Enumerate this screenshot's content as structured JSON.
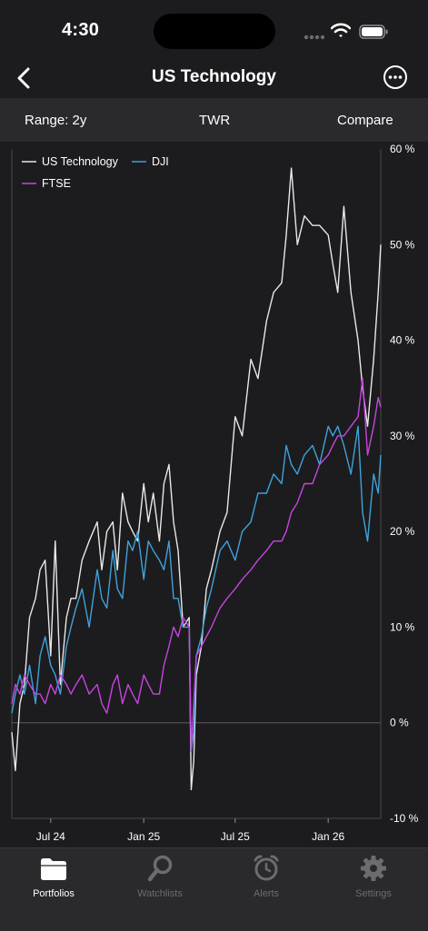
{
  "status": {
    "time": "4:30"
  },
  "nav": {
    "title": "US Technology",
    "back_icon": "chevron-left-icon",
    "more_icon": "ellipsis-circle-icon"
  },
  "controls": {
    "range": "Range: 2y",
    "metric": "TWR",
    "compare": "Compare"
  },
  "colors": {
    "us_technology": "#e8e8e8",
    "dji": "#3fa2dc",
    "ftse": "#c844e0",
    "background": "#1c1c1e",
    "panel": "#2a2a2d"
  },
  "chart_data": {
    "type": "line",
    "title": "",
    "xlabel": "",
    "ylabel": "",
    "legend_position": "top-left",
    "y_axis_position": "right",
    "ylim": [
      -10,
      60
    ],
    "y_ticks": [
      -10,
      0,
      10,
      20,
      30,
      40,
      50,
      60
    ],
    "y_tick_labels": [
      "-10 %",
      "0 %",
      "10 %",
      "20 %",
      "30 %",
      "40 %",
      "50 %",
      "60 %"
    ],
    "x_tick_labels": [
      "Jul 24",
      "Jan 25",
      "Jul 25",
      "Jan 26"
    ],
    "x_tick_dates": [
      "2024-07-01",
      "2025-01-01",
      "2025-07-01",
      "2026-01-01"
    ],
    "x_range": [
      "2024-04-15",
      "2026-04-15"
    ],
    "series": [
      {
        "name": "US Technology",
        "color": "#e8e8e8",
        "x": [
          "2024-04-15",
          "2024-04-22",
          "2024-05-01",
          "2024-05-10",
          "2024-05-20",
          "2024-06-01",
          "2024-06-10",
          "2024-06-20",
          "2024-07-01",
          "2024-07-10",
          "2024-07-20",
          "2024-08-01",
          "2024-08-10",
          "2024-08-20",
          "2024-09-01",
          "2024-09-15",
          "2024-10-01",
          "2024-10-10",
          "2024-10-20",
          "2024-11-01",
          "2024-11-10",
          "2024-11-20",
          "2024-12-01",
          "2024-12-10",
          "2024-12-20",
          "2025-01-01",
          "2025-01-10",
          "2025-01-20",
          "2025-02-01",
          "2025-02-10",
          "2025-02-20",
          "2025-03-01",
          "2025-03-10",
          "2025-03-20",
          "2025-04-01",
          "2025-04-05",
          "2025-04-10",
          "2025-04-15",
          "2025-04-25",
          "2025-05-05",
          "2025-05-15",
          "2025-06-01",
          "2025-06-15",
          "2025-07-01",
          "2025-07-15",
          "2025-08-01",
          "2025-08-15",
          "2025-09-01",
          "2025-09-15",
          "2025-10-01",
          "2025-10-10",
          "2025-10-20",
          "2025-11-01",
          "2025-11-15",
          "2025-12-01",
          "2025-12-15",
          "2026-01-01",
          "2026-01-10",
          "2026-01-20",
          "2026-02-01",
          "2026-02-15",
          "2026-03-01",
          "2026-03-10",
          "2026-03-20",
          "2026-04-01",
          "2026-04-10",
          "2026-04-15"
        ],
        "values": [
          -1,
          -5,
          2,
          4,
          11,
          13,
          16,
          17,
          7,
          19,
          4,
          11,
          13,
          13,
          17,
          19,
          21,
          16,
          20,
          21,
          16,
          24,
          21,
          20,
          19,
          25,
          21,
          24,
          19,
          25,
          27,
          21,
          18,
          10,
          11,
          -7,
          -4,
          5,
          8,
          14,
          16,
          20,
          22,
          32,
          30,
          38,
          36,
          42,
          45,
          46,
          51,
          58,
          50,
          53,
          52,
          52,
          51,
          48,
          45,
          54,
          45,
          40,
          35,
          31,
          38,
          45,
          50
        ]
      },
      {
        "name": "DJI",
        "color": "#3fa2dc",
        "x": [
          "2024-04-15",
          "2024-04-22",
          "2024-05-01",
          "2024-05-10",
          "2024-05-20",
          "2024-06-01",
          "2024-06-10",
          "2024-06-20",
          "2024-07-01",
          "2024-07-10",
          "2024-07-20",
          "2024-08-01",
          "2024-08-10",
          "2024-08-20",
          "2024-09-01",
          "2024-09-15",
          "2024-10-01",
          "2024-10-10",
          "2024-10-20",
          "2024-11-01",
          "2024-11-10",
          "2024-11-20",
          "2024-12-01",
          "2024-12-10",
          "2024-12-20",
          "2025-01-01",
          "2025-01-10",
          "2025-01-20",
          "2025-02-01",
          "2025-02-10",
          "2025-02-20",
          "2025-03-01",
          "2025-03-10",
          "2025-03-20",
          "2025-04-01",
          "2025-04-05",
          "2025-04-10",
          "2025-04-15",
          "2025-04-25",
          "2025-05-05",
          "2025-05-15",
          "2025-06-01",
          "2025-06-15",
          "2025-07-01",
          "2025-07-15",
          "2025-08-01",
          "2025-08-15",
          "2025-09-01",
          "2025-09-15",
          "2025-10-01",
          "2025-10-10",
          "2025-10-20",
          "2025-11-01",
          "2025-11-15",
          "2025-12-01",
          "2025-12-15",
          "2026-01-01",
          "2026-01-10",
          "2026-01-20",
          "2026-02-01",
          "2026-02-15",
          "2026-03-01",
          "2026-03-10",
          "2026-03-20",
          "2026-04-01",
          "2026-04-10",
          "2026-04-15"
        ],
        "values": [
          1,
          3,
          5,
          3,
          6,
          2,
          7,
          9,
          6,
          5,
          3,
          8,
          10,
          12,
          14,
          10,
          16,
          13,
          12,
          18,
          14,
          13,
          19,
          18,
          20,
          15,
          19,
          18,
          17,
          16,
          19,
          13,
          13,
          10,
          10,
          -3,
          -1,
          7,
          9,
          12,
          14,
          18,
          19,
          17,
          20,
          21,
          24,
          24,
          26,
          25,
          29,
          27,
          26,
          28,
          29,
          27,
          31,
          30,
          31,
          29,
          26,
          31,
          22,
          19,
          26,
          24,
          28
        ]
      },
      {
        "name": "FTSE",
        "color": "#c844e0",
        "x": [
          "2024-04-15",
          "2024-04-22",
          "2024-05-01",
          "2024-05-10",
          "2024-05-20",
          "2024-06-01",
          "2024-06-10",
          "2024-06-20",
          "2024-07-01",
          "2024-07-10",
          "2024-07-20",
          "2024-08-01",
          "2024-08-10",
          "2024-08-20",
          "2024-09-01",
          "2024-09-15",
          "2024-10-01",
          "2024-10-10",
          "2024-10-20",
          "2024-11-01",
          "2024-11-10",
          "2024-11-20",
          "2024-12-01",
          "2024-12-10",
          "2024-12-20",
          "2025-01-01",
          "2025-01-10",
          "2025-01-20",
          "2025-02-01",
          "2025-02-10",
          "2025-02-20",
          "2025-03-01",
          "2025-03-10",
          "2025-03-20",
          "2025-04-01",
          "2025-04-05",
          "2025-04-10",
          "2025-04-15",
          "2025-04-25",
          "2025-05-05",
          "2025-05-15",
          "2025-06-01",
          "2025-06-15",
          "2025-07-01",
          "2025-07-15",
          "2025-08-01",
          "2025-08-15",
          "2025-09-01",
          "2025-09-15",
          "2025-10-01",
          "2025-10-10",
          "2025-10-20",
          "2025-11-01",
          "2025-11-15",
          "2025-12-01",
          "2025-12-15",
          "2026-01-01",
          "2026-01-10",
          "2026-01-20",
          "2026-02-01",
          "2026-02-15",
          "2026-03-01",
          "2026-03-10",
          "2026-03-20",
          "2026-04-01",
          "2026-04-10",
          "2026-04-15"
        ],
        "values": [
          2,
          4,
          3,
          5,
          4,
          3,
          3,
          2,
          4,
          3,
          5,
          4,
          3,
          4,
          5,
          3,
          4,
          2,
          1,
          4,
          5,
          2,
          4,
          3,
          2,
          5,
          4,
          3,
          3,
          6,
          8,
          10,
          9,
          11,
          10,
          -3,
          2,
          7,
          8,
          9,
          10,
          12,
          13,
          14,
          15,
          16,
          17,
          18,
          19,
          19,
          20,
          22,
          23,
          25,
          25,
          27,
          28,
          29,
          30,
          30,
          31,
          32,
          36,
          28,
          31,
          34,
          33
        ]
      }
    ]
  },
  "tabs": [
    {
      "label": "Portfolios",
      "icon": "folder-icon",
      "active": true
    },
    {
      "label": "Watchlists",
      "icon": "magnifier-icon",
      "active": false
    },
    {
      "label": "Alerts",
      "icon": "alarm-clock-icon",
      "active": false
    },
    {
      "label": "Settings",
      "icon": "gear-icon",
      "active": false
    }
  ]
}
